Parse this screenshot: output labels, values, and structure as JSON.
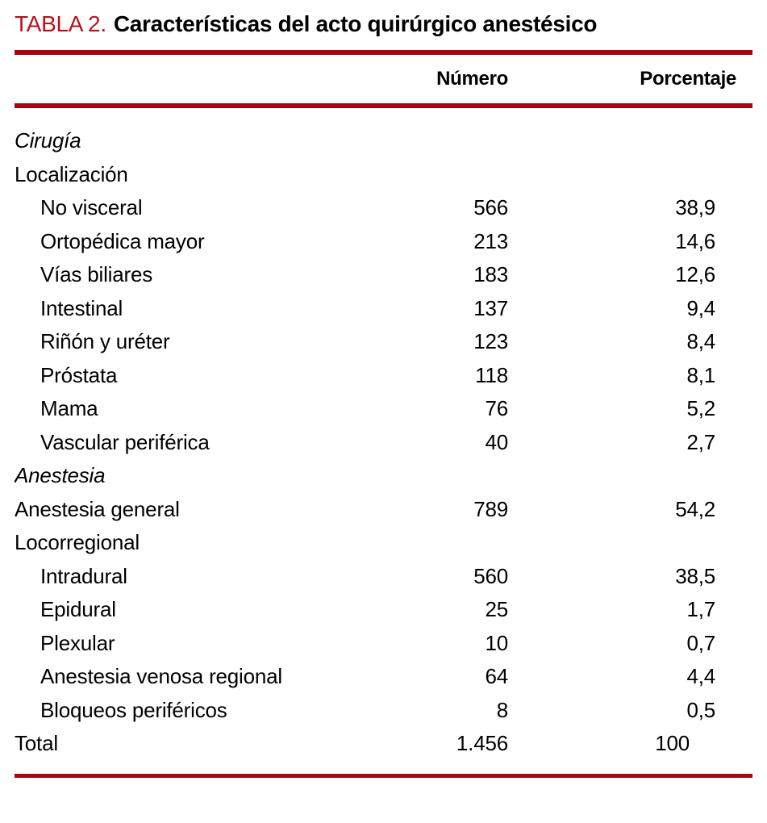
{
  "table": {
    "label": "TABLA 2.",
    "title": "Características del acto quirúrgico anestésico",
    "accent_color": "#a8050f",
    "label_color": "#b5131c",
    "columns": {
      "numero": "Número",
      "porcentaje": "Porcentaje"
    },
    "rows": [
      {
        "label": "Cirugía",
        "indent": 0,
        "italic": true,
        "numero": "",
        "porcentaje": "",
        "total": false
      },
      {
        "label": "Localización",
        "indent": 0,
        "italic": false,
        "numero": "",
        "porcentaje": "",
        "total": false
      },
      {
        "label": "No visceral",
        "indent": 1,
        "italic": false,
        "numero": "566",
        "porcentaje": "38,9",
        "total": false
      },
      {
        "label": "Ortopédica mayor",
        "indent": 1,
        "italic": false,
        "numero": "213",
        "porcentaje": "14,6",
        "total": false
      },
      {
        "label": "Vías biliares",
        "indent": 1,
        "italic": false,
        "numero": "183",
        "porcentaje": "12,6",
        "total": false
      },
      {
        "label": "Intestinal",
        "indent": 1,
        "italic": false,
        "numero": "137",
        "porcentaje": "9,4",
        "total": false
      },
      {
        "label": "Riñón y uréter",
        "indent": 1,
        "italic": false,
        "numero": "123",
        "porcentaje": "8,4",
        "total": false
      },
      {
        "label": "Próstata",
        "indent": 1,
        "italic": false,
        "numero": "118",
        "porcentaje": "8,1",
        "total": false
      },
      {
        "label": "Mama",
        "indent": 1,
        "italic": false,
        "numero": "76",
        "porcentaje": "5,2",
        "total": false
      },
      {
        "label": "Vascular periférica",
        "indent": 1,
        "italic": false,
        "numero": "40",
        "porcentaje": "2,7",
        "total": false
      },
      {
        "label": "Anestesia",
        "indent": 0,
        "italic": true,
        "numero": "",
        "porcentaje": "",
        "total": false
      },
      {
        "label": "Anestesia general",
        "indent": 0,
        "italic": false,
        "numero": "789",
        "porcentaje": "54,2",
        "total": false
      },
      {
        "label": "Locorregional",
        "indent": 0,
        "italic": false,
        "numero": "",
        "porcentaje": "",
        "total": false
      },
      {
        "label": "Intradural",
        "indent": 1,
        "italic": false,
        "numero": "560",
        "porcentaje": "38,5",
        "total": false
      },
      {
        "label": "Epidural",
        "indent": 1,
        "italic": false,
        "numero": "25",
        "porcentaje": "1,7",
        "total": false
      },
      {
        "label": "Plexular",
        "indent": 1,
        "italic": false,
        "numero": "10",
        "porcentaje": "0,7",
        "total": false
      },
      {
        "label": "Anestesia venosa regional",
        "indent": 1,
        "italic": false,
        "numero": "64",
        "porcentaje": "4,4",
        "total": false
      },
      {
        "label": "Bloqueos periféricos",
        "indent": 1,
        "italic": false,
        "numero": "8",
        "porcentaje": "0,5",
        "total": false
      },
      {
        "label": "Total",
        "indent": 0,
        "italic": false,
        "numero": "1.456",
        "porcentaje": "100",
        "total": true
      }
    ]
  }
}
